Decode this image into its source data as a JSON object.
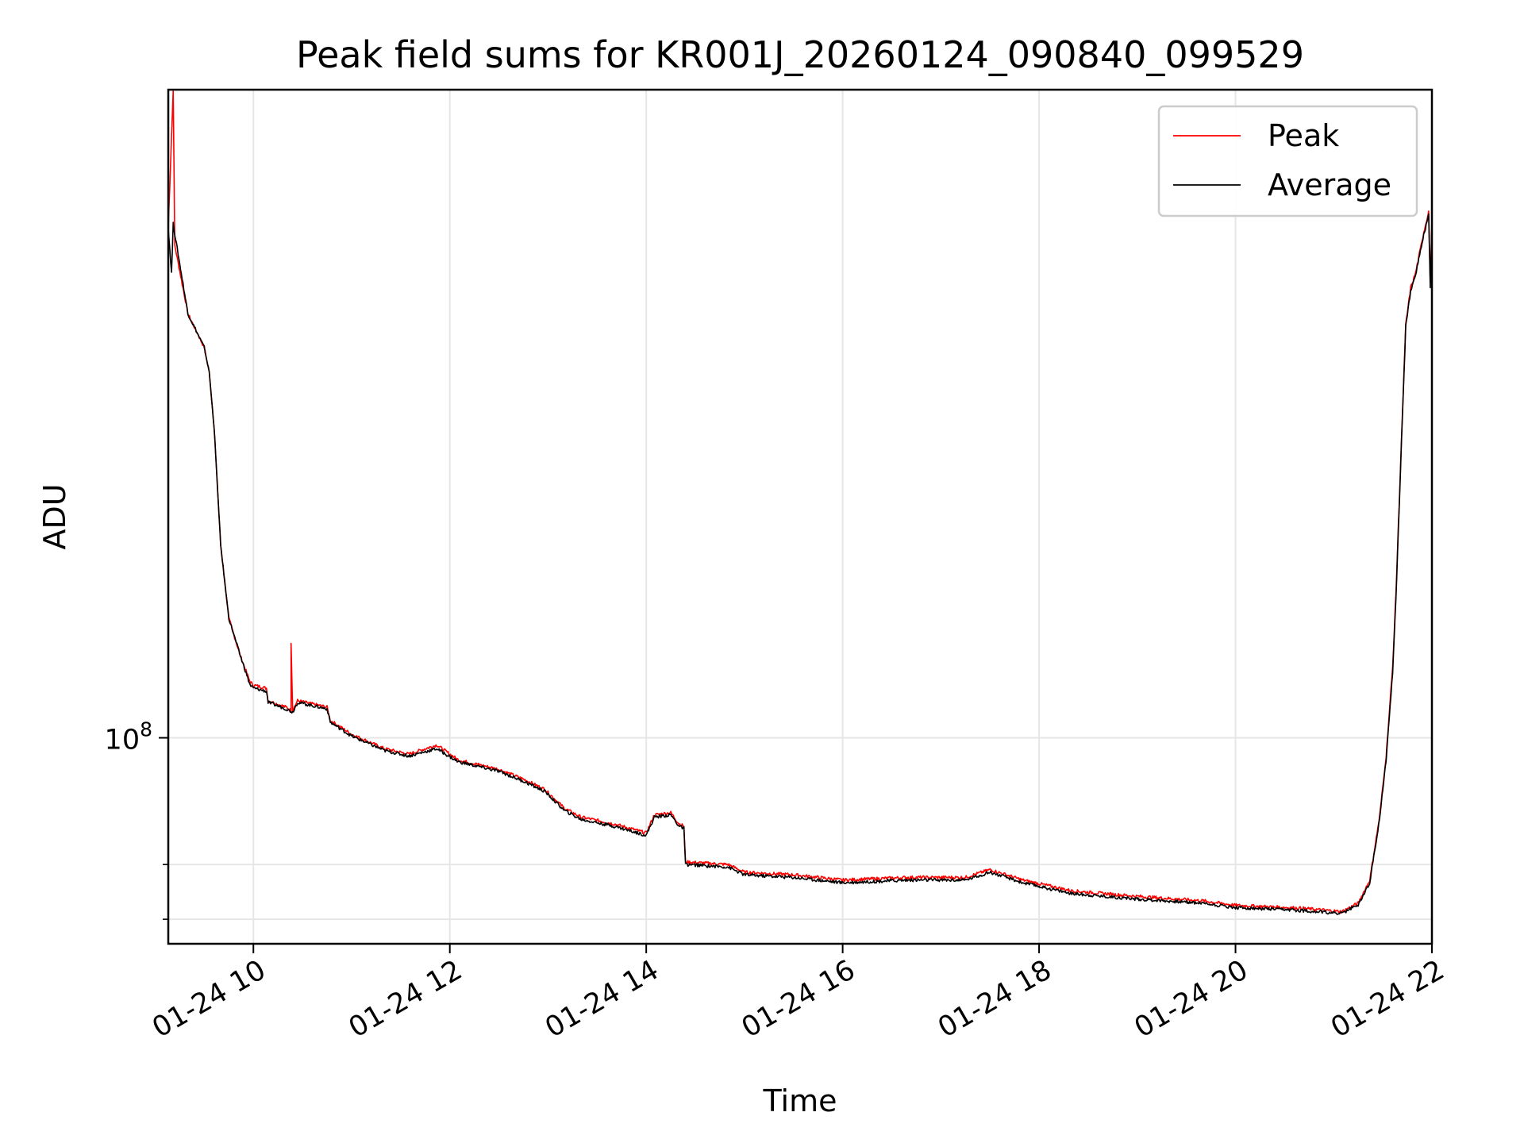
{
  "chart_data": {
    "type": "line",
    "title": "Peak field sums for KR001J_20260124_090840_099529",
    "xlabel": "Time",
    "ylabel": "ADU",
    "yscale": "log",
    "grid": true,
    "legend_placement": "top-right",
    "x_tick_labels": [
      "01-24 10",
      "01-24 12",
      "01-24 14",
      "01-24 16",
      "01-24 18",
      "01-24 20",
      "01-24 22"
    ],
    "y_tick_labels": [
      {
        "base": "10",
        "exp": "8"
      }
    ],
    "xlim": [
      "2026-01-24 09:08",
      "2026-01-24 22:00"
    ],
    "ylim": [
      56000000,
      620000000
    ],
    "series": [
      {
        "name": "Peak",
        "color": "#ff0000",
        "points": [
          [
            "09:08",
            420000000
          ],
          [
            "09:11",
            620000000
          ],
          [
            "09:12",
            400000000
          ],
          [
            "09:20",
            330000000
          ],
          [
            "09:30",
            300000000
          ],
          [
            "09:33",
            280000000
          ],
          [
            "09:36",
            240000000
          ],
          [
            "09:40",
            172000000
          ],
          [
            "09:45",
            140000000
          ],
          [
            "09:52",
            126000000
          ],
          [
            "09:58",
            117000000
          ],
          [
            "10:00",
            116000000
          ],
          [
            "10:08",
            115000000
          ],
          [
            "10:09",
            111000000
          ],
          [
            "10:20",
            109000000
          ],
          [
            "10:23",
            108000000
          ],
          [
            "10:23",
            131000000
          ],
          [
            "10:24",
            108000000
          ],
          [
            "10:27",
            111000000
          ],
          [
            "10:45",
            109000000
          ],
          [
            "10:47",
            105000000
          ],
          [
            "11:00",
            101000000
          ],
          [
            "11:20",
            97000000
          ],
          [
            "11:35",
            95500000
          ],
          [
            "11:52",
            98000000
          ],
          [
            "12:05",
            94000000
          ],
          [
            "12:30",
            91500000
          ],
          [
            "12:45",
            89000000
          ],
          [
            "12:58",
            86500000
          ],
          [
            "13:10",
            82000000
          ],
          [
            "13:20",
            80000000
          ],
          [
            "13:40",
            78500000
          ],
          [
            "14:00",
            76500000
          ],
          [
            "14:05",
            80500000
          ],
          [
            "14:15",
            81000000
          ],
          [
            "14:20",
            78500000
          ],
          [
            "14:23",
            78000000
          ],
          [
            "14:24",
            70500000
          ],
          [
            "14:50",
            70000000
          ],
          [
            "15:00",
            68500000
          ],
          [
            "15:30",
            68000000
          ],
          [
            "16:00",
            67000000
          ],
          [
            "16:40",
            67500000
          ],
          [
            "17:15",
            67500000
          ],
          [
            "17:30",
            69000000
          ],
          [
            "17:50",
            67000000
          ],
          [
            "18:20",
            65000000
          ],
          [
            "19:00",
            64000000
          ],
          [
            "19:40",
            63200000
          ],
          [
            "20:00",
            62400000
          ],
          [
            "20:40",
            61900000
          ],
          [
            "21:05",
            61300000
          ],
          [
            "21:15",
            62800000
          ],
          [
            "21:22",
            67000000
          ],
          [
            "21:28",
            80000000
          ],
          [
            "21:32",
            95000000
          ],
          [
            "21:36",
            122000000
          ],
          [
            "21:38",
            150000000
          ],
          [
            "21:41",
            220000000
          ],
          [
            "21:44",
            320000000
          ],
          [
            "21:47",
            355000000
          ],
          [
            "21:50",
            370000000
          ],
          [
            "21:55",
            415000000
          ],
          [
            "21:58",
            440000000
          ],
          [
            "21:59",
            360000000
          ],
          [
            "22:00",
            430000000
          ]
        ]
      },
      {
        "name": "Average",
        "color": "#000000",
        "points": [
          [
            "09:08",
            420000000
          ],
          [
            "09:10",
            370000000
          ],
          [
            "09:11",
            425000000
          ],
          [
            "09:20",
            330000000
          ],
          [
            "09:30",
            300000000
          ],
          [
            "09:33",
            280000000
          ],
          [
            "09:36",
            240000000
          ],
          [
            "09:40",
            172000000
          ],
          [
            "09:45",
            140000000
          ],
          [
            "09:52",
            126000000
          ],
          [
            "09:58",
            116000000
          ],
          [
            "10:00",
            115000000
          ],
          [
            "10:08",
            114000000
          ],
          [
            "10:09",
            110500000
          ],
          [
            "10:20",
            108500000
          ],
          [
            "10:24",
            107500000
          ],
          [
            "10:27",
            110500000
          ],
          [
            "10:45",
            108500000
          ],
          [
            "10:47",
            104500000
          ],
          [
            "11:00",
            100500000
          ],
          [
            "11:20",
            96500000
          ],
          [
            "11:35",
            95000000
          ],
          [
            "11:52",
            97000000
          ],
          [
            "12:05",
            93500000
          ],
          [
            "12:30",
            91000000
          ],
          [
            "12:45",
            88500000
          ],
          [
            "12:58",
            86000000
          ],
          [
            "13:10",
            81500000
          ],
          [
            "13:20",
            79500000
          ],
          [
            "13:40",
            78000000
          ],
          [
            "14:00",
            76000000
          ],
          [
            "14:05",
            80000000
          ],
          [
            "14:15",
            80500000
          ],
          [
            "14:20",
            78000000
          ],
          [
            "14:23",
            77500000
          ],
          [
            "14:24",
            70000000
          ],
          [
            "14:50",
            69500000
          ],
          [
            "15:00",
            68000000
          ],
          [
            "15:30",
            67500000
          ],
          [
            "16:00",
            66500000
          ],
          [
            "16:40",
            67000000
          ],
          [
            "17:15",
            67000000
          ],
          [
            "17:30",
            68500000
          ],
          [
            "17:50",
            66500000
          ],
          [
            "18:20",
            64500000
          ],
          [
            "19:00",
            63500000
          ],
          [
            "19:40",
            62800000
          ],
          [
            "20:00",
            62000000
          ],
          [
            "20:40",
            61500000
          ],
          [
            "21:05",
            61000000
          ],
          [
            "21:15",
            62500000
          ],
          [
            "21:22",
            66500000
          ],
          [
            "21:28",
            79500000
          ],
          [
            "21:32",
            94000000
          ],
          [
            "21:36",
            120000000
          ],
          [
            "21:38",
            148000000
          ],
          [
            "21:41",
            218000000
          ],
          [
            "21:44",
            318000000
          ],
          [
            "21:47",
            352000000
          ],
          [
            "21:50",
            368000000
          ],
          [
            "21:55",
            412000000
          ],
          [
            "21:58",
            435000000
          ],
          [
            "21:59",
            355000000
          ],
          [
            "22:00",
            425000000
          ]
        ]
      }
    ]
  }
}
